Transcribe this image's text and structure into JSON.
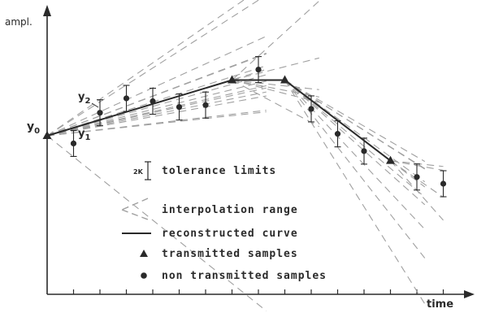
{
  "axes": {
    "y_label": "ampl.",
    "x_label": "time"
  },
  "point_labels": {
    "y0_main": "y",
    "y0_sub": "0",
    "y1_main": "y",
    "y1_sub": "1",
    "y2_main": "y",
    "y2_sub": "2"
  },
  "legend": {
    "tolerance_symbol": "2K",
    "tolerance": "tolerance limits",
    "interpolation": "interpolation range",
    "reconstructed": "reconstructed curve",
    "transmitted": "transmitted samples",
    "non_transmitted": "non transmitted samples"
  },
  "colors": {
    "ink": "#2a2a2a",
    "dashed": "#a0a0a0"
  },
  "diagram": {
    "sample_count": 16,
    "transmitted_indices": [
      0,
      7,
      9,
      13
    ],
    "values": [
      0.0,
      -0.08,
      0.24,
      0.39,
      0.36,
      0.3,
      0.32,
      0.58,
      0.69,
      0.58,
      0.28,
      0.02,
      -0.16,
      -0.26,
      -0.43,
      -0.5
    ]
  }
}
